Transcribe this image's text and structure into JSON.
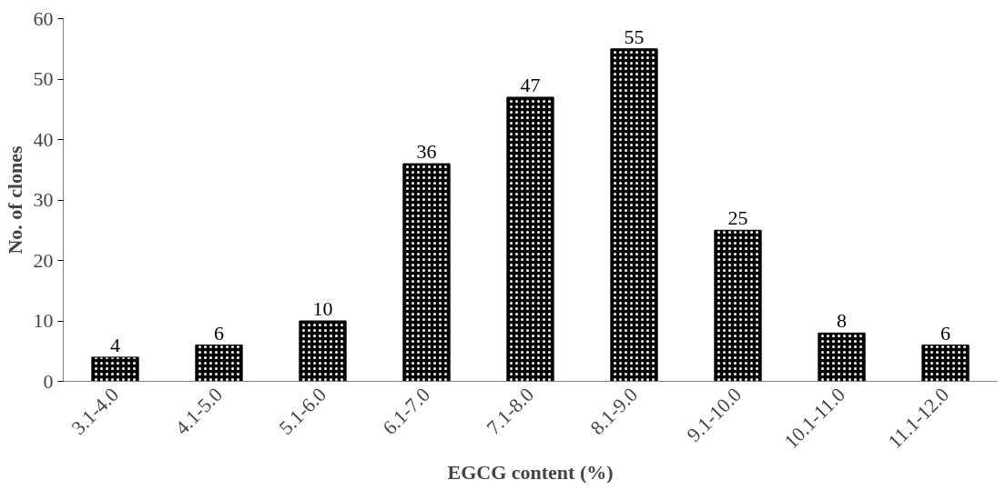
{
  "chart_data": {
    "type": "bar",
    "xlabel": "EGCG content (%)",
    "ylabel": "No. of clones",
    "categories": [
      "3.1-4.0",
      "4.1-5.0",
      "5.1-6.0",
      "6.1-7.0",
      "7.1-8.0",
      "8.1-9.0",
      "9.1-10.0",
      "10.1-11.0",
      "11.1-12.0"
    ],
    "values": [
      4,
      6,
      10,
      36,
      47,
      55,
      25,
      8,
      6
    ],
    "color": "#000000",
    "ylim": [
      0,
      60
    ],
    "yticks": [
      0,
      10,
      20,
      30,
      40,
      50,
      60
    ],
    "grid": false,
    "data_labels": true
  }
}
